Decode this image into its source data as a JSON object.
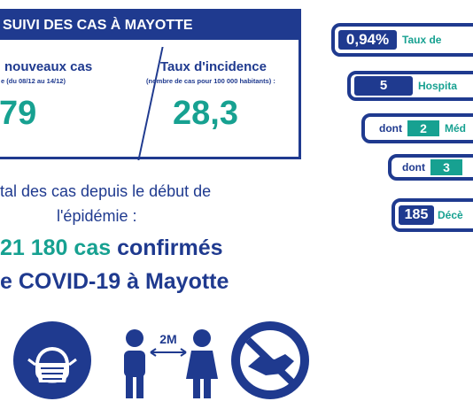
{
  "card": {
    "header": "SUIVI DES CAS À MAYOTTE",
    "new_cases": {
      "title": "nouveaux cas",
      "subtitle": "e (du 08/12 au 14/12)",
      "value": "79"
    },
    "incidence": {
      "title": "Taux d'incidence",
      "subtitle": "(nombre de cas pour 100 000 habitants) :",
      "value": "28,3"
    }
  },
  "total": {
    "line1": "tal des cas depuis le début de",
    "line2": "l'épidémie :",
    "count": "21 180 cas",
    "count_suffix": "confirmés",
    "line4": "e COVID-19 à Mayotte"
  },
  "icons": [
    "mask-icon",
    "distance-icon",
    "no-handshake-icon"
  ],
  "distance_label": "2M",
  "right": {
    "rate_value": "0,94%",
    "rate_label": "Taux de",
    "hosp_value": "5",
    "hosp_label": "Hospita",
    "dont1_prefix": "dont",
    "dont1_value": "2",
    "dont1_label": "Méd",
    "dont2_prefix": "dont",
    "dont2_value": "3",
    "deaths_value": "185",
    "deaths_label": "Décè"
  },
  "colors": {
    "navy": "#1f3a8f",
    "teal": "#17a191"
  }
}
